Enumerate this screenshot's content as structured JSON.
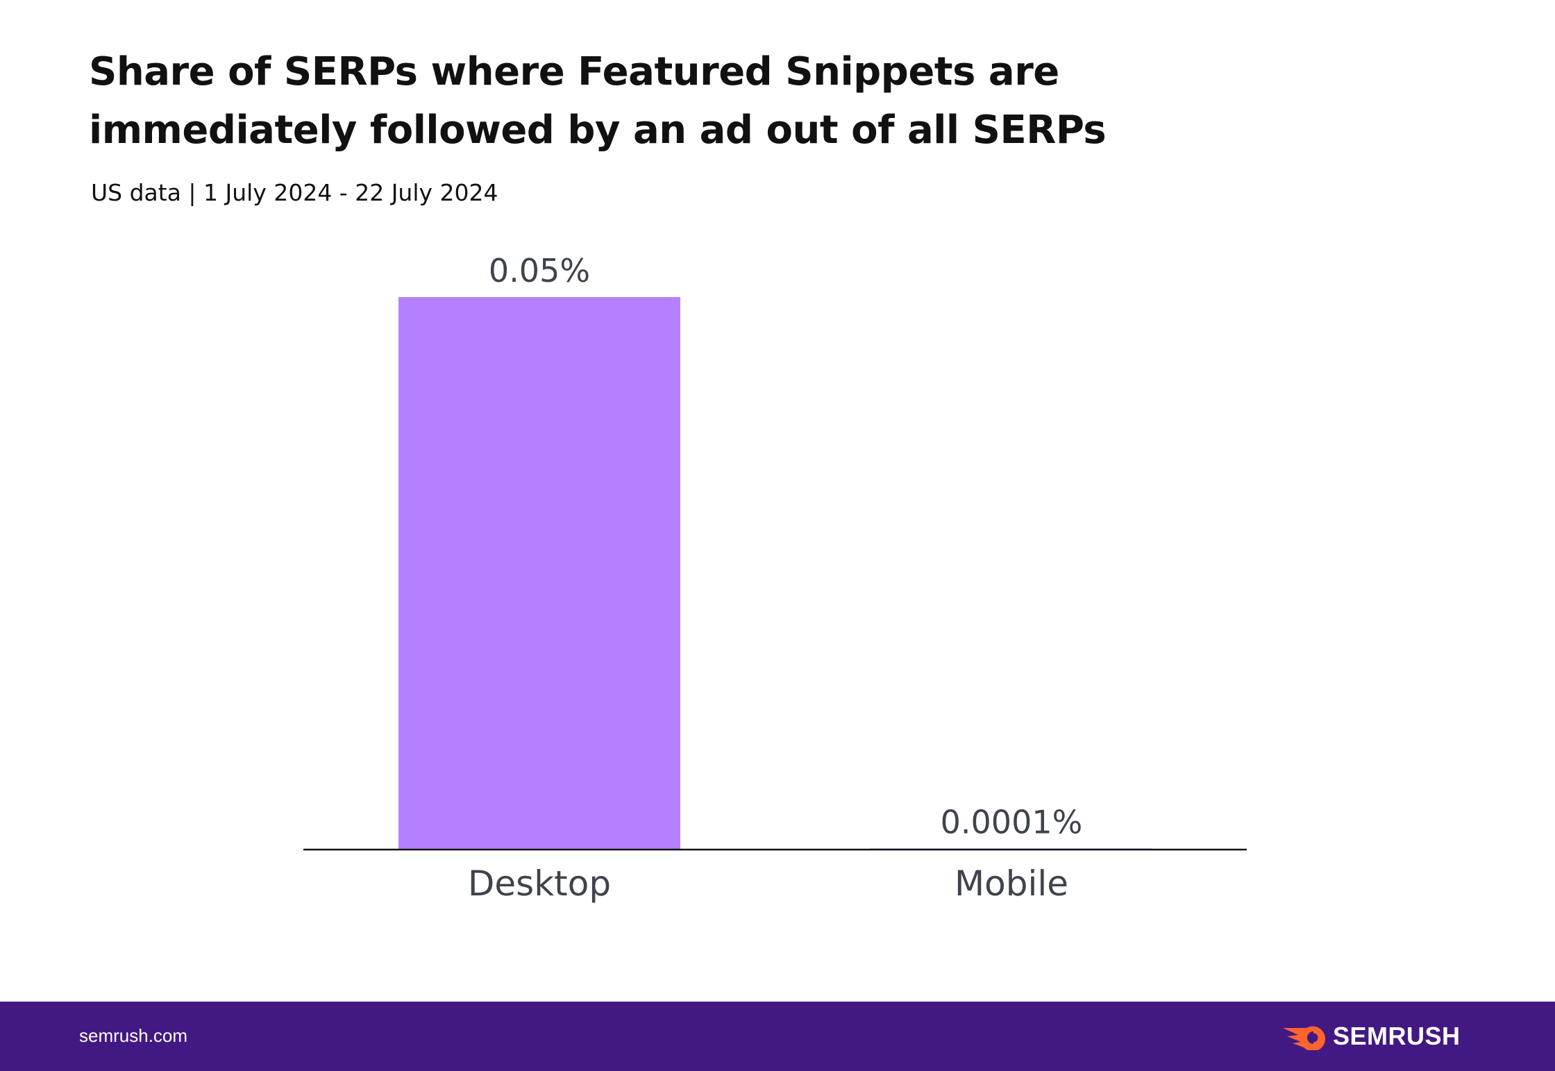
{
  "chart_data": {
    "type": "bar",
    "title": "Share of SERPs where Featured Snippets are immediately followed by an ad out of all SERPs",
    "subtitle": "US data | 1 July 2024 - 22 July 2024",
    "categories": [
      "Desktop",
      "Mobile"
    ],
    "values": [
      0.05,
      0.0001
    ],
    "data_labels": [
      "0.05%",
      "0.0001%"
    ],
    "unit": "%",
    "ylim": [
      0,
      0.05
    ],
    "grid": false,
    "bar_color": "#b580ff",
    "xlabel": "",
    "ylabel": ""
  },
  "footer": {
    "site": "semrush.com",
    "logo": "SEMRUSH",
    "background": "#421983",
    "logo_accent": "#ff642d"
  }
}
